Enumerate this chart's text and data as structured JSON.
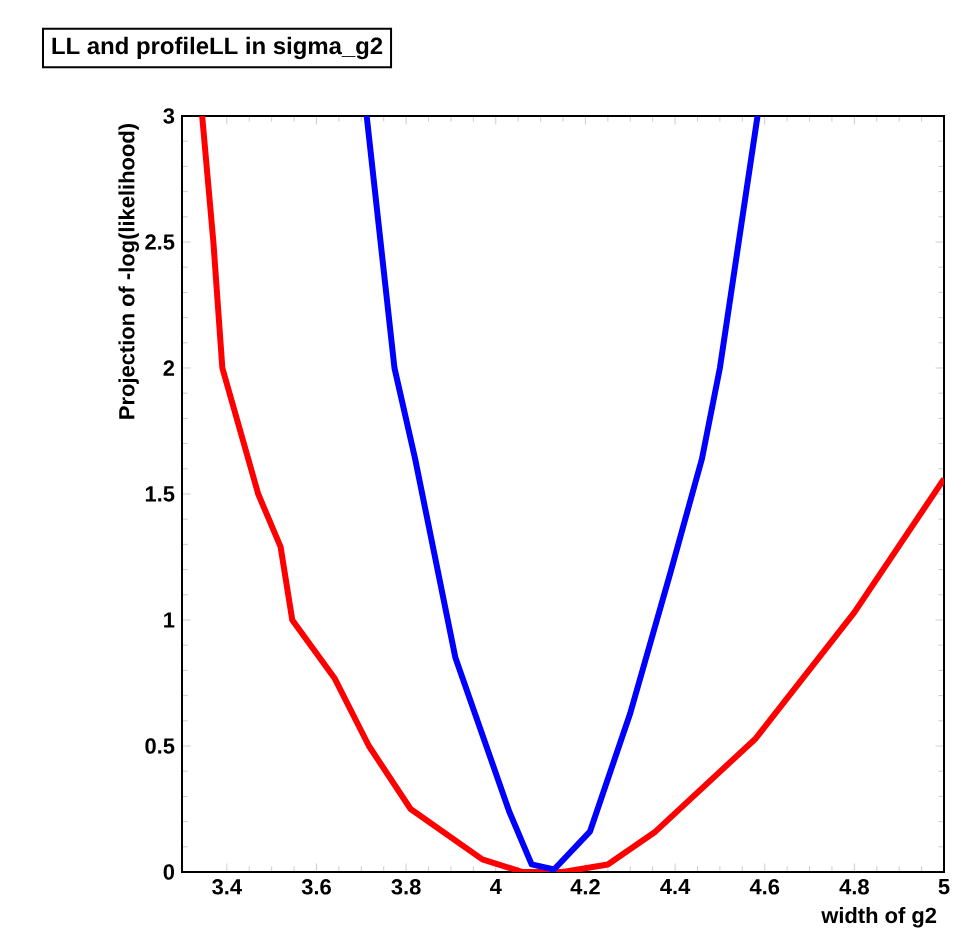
{
  "chart_data": {
    "type": "line",
    "title": "LL and profileLL in sigma_g2",
    "xlabel": "width of g2",
    "ylabel": "Projection of -log(likelihood)",
    "xlim": [
      3.3,
      5
    ],
    "ylim": [
      0,
      3
    ],
    "xticks": [
      3.4,
      3.6,
      3.8,
      4,
      4.2,
      4.4,
      4.6,
      4.8,
      5
    ],
    "yticks": [
      0,
      0.5,
      1,
      1.5,
      2,
      2.5,
      3
    ],
    "series": [
      {
        "color": "#ff0000",
        "x": [
          3.345,
          3.37,
          3.39,
          3.47,
          3.52,
          3.546,
          3.64,
          3.717,
          3.81,
          3.97,
          4.06,
          4.15,
          4.25,
          4.356,
          4.58,
          4.8,
          5
        ],
        "values": [
          3,
          2.5,
          2,
          1.5,
          1.29,
          1,
          0.77,
          0.5,
          0.25,
          0.05,
          0,
          0,
          0.03,
          0.16,
          0.53,
          1.03,
          1.56
        ]
      },
      {
        "color": "#0000ff",
        "x": [
          3.712,
          3.774,
          3.82,
          3.91,
          4.03,
          4.08,
          4.13,
          4.21,
          4.3,
          4.39,
          4.46,
          4.5,
          4.584
        ],
        "values": [
          3,
          2,
          1.64,
          0.85,
          0.24,
          0.03,
          0.01,
          0.16,
          0.63,
          1.19,
          1.64,
          2,
          3
        ]
      }
    ]
  }
}
